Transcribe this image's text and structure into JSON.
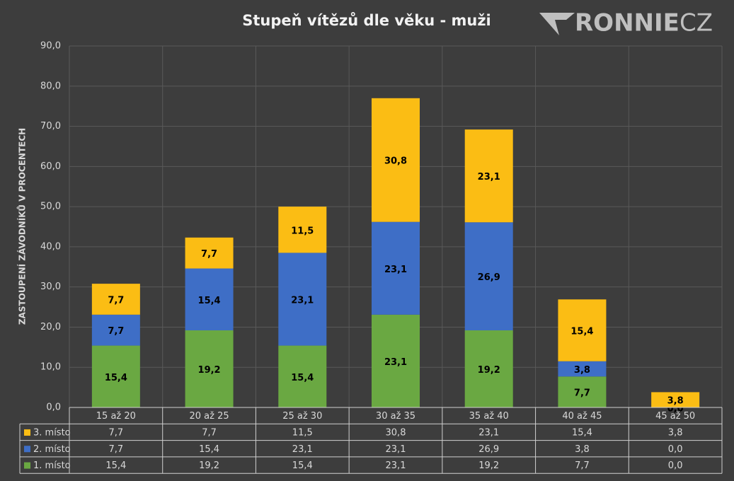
{
  "chart_data": {
    "type": "stacked-bar",
    "title": "Stupeň vítězů dle věku - muži",
    "y_label": "ZASTOUPENÍ ZÁVODNÍKŮ V PROCENTECH",
    "categories": [
      "15 až 20",
      "20 až 25",
      "25 až 30",
      "30 až 35",
      "35 až 40",
      "40 až 45",
      "45 až 50"
    ],
    "series": [
      {
        "name": "1. místo",
        "color": "#6aa842",
        "values": [
          15.4,
          19.2,
          15.4,
          23.1,
          19.2,
          7.7,
          0.0
        ],
        "value_labels": [
          "15,4",
          "19,2",
          "15,4",
          "23,1",
          "19,2",
          "7,7",
          "0,0"
        ]
      },
      {
        "name": "2. místo",
        "color": "#3e6ec6",
        "values": [
          7.7,
          15.4,
          23.1,
          23.1,
          26.9,
          3.8,
          0.0
        ],
        "value_labels": [
          "7,7",
          "15,4",
          "23,1",
          "23,1",
          "26,9",
          "3,8",
          "0,0"
        ]
      },
      {
        "name": "3. místo",
        "color": "#fbbd14",
        "values": [
          7.7,
          7.7,
          11.5,
          30.8,
          23.1,
          15.4,
          3.8
        ],
        "value_labels": [
          "7,7",
          "7,7",
          "11,5",
          "30,8",
          "23,1",
          "15,4",
          "3,8"
        ]
      }
    ],
    "ylim": [
      0,
      90
    ],
    "yticks": [
      {
        "value": 0,
        "label": "0,0"
      },
      {
        "value": 10,
        "label": "10,0"
      },
      {
        "value": 20,
        "label": "20,0"
      },
      {
        "value": 30,
        "label": "30,0"
      },
      {
        "value": 40,
        "label": "40,0"
      },
      {
        "value": 50,
        "label": "50,0"
      },
      {
        "value": 60,
        "label": "60,0"
      },
      {
        "value": 70,
        "label": "70,0"
      },
      {
        "value": 80,
        "label": "80,0"
      },
      {
        "value": 90,
        "label": "90,0"
      }
    ],
    "grid": true,
    "legend": "table"
  },
  "logo": {
    "bold": "RONNIE",
    "light": "CZ"
  }
}
